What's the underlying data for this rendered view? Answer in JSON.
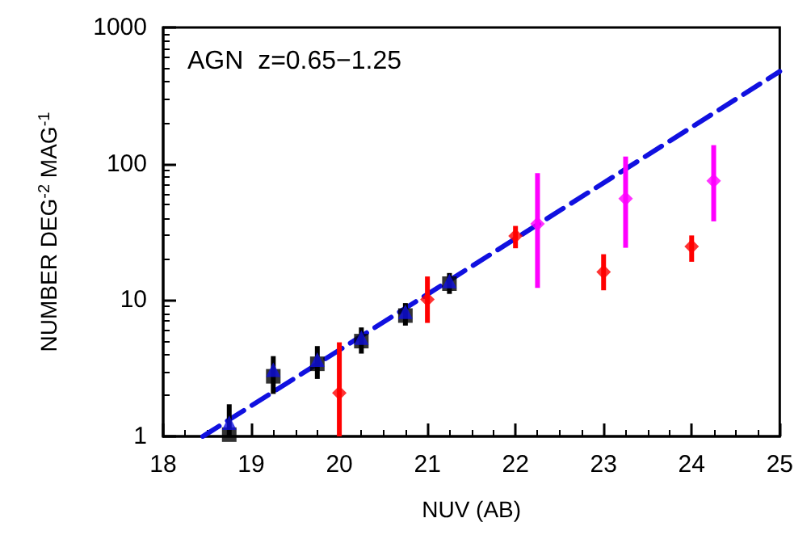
{
  "chart_data": {
    "type": "scatter",
    "xlabel": "NUV (AB)",
    "ylabel": "NUMBER DEG$^{-2}$ MAG$^{-1}$",
    "annotations": [
      "AGN  z=0.65−1.25"
    ],
    "log": "y",
    "xlim": [
      18,
      25
    ],
    "xticks": [
      18,
      19,
      20,
      21,
      22,
      23,
      24,
      25
    ],
    "ylim": [
      1,
      1000
    ],
    "yticks": [
      1,
      10,
      100,
      1000
    ],
    "grid": false,
    "series": [
      {
        "type": "line",
        "color": "#1010e0",
        "line_style": "dashed",
        "marker": "none",
        "x": [
          18.45,
          25
        ],
        "values": [
          1,
          476
        ]
      },
      {
        "color": "#000000",
        "marker": "square",
        "x": [
          18.75,
          19.25,
          19.75,
          20.25,
          20.75,
          21.25
        ],
        "values": [
          1.03,
          2.76,
          3.41,
          5.0,
          7.7,
          13.2
        ],
        "errors": [
          [
            1,
            1.72
          ],
          [
            2.05,
            3.88
          ],
          [
            2.64,
            4.6
          ],
          [
            4.05,
            6.3
          ],
          [
            6.5,
            9.5
          ],
          [
            11.1,
            15.8
          ]
        ]
      },
      {
        "color": "#1010e0",
        "marker": "triangle",
        "x": [
          18.75,
          19.25,
          19.75,
          20.25,
          20.75,
          21.25
        ],
        "values": [
          1.26,
          3.08,
          3.66,
          5.3,
          8.2,
          13.8
        ]
      },
      {
        "color": "#ff0000",
        "marker": "diamond",
        "x": [
          20,
          21,
          22,
          23,
          24
        ],
        "values": [
          2.08,
          10.1,
          29.5,
          16.1,
          24.7
        ],
        "errors": [
          [
            1,
            4.9
          ],
          [
            6.8,
            14.9
          ],
          [
            24,
            35
          ],
          [
            11.8,
            21.7
          ],
          [
            19.1,
            29.8
          ]
        ]
      },
      {
        "color": "#ff00ff",
        "marker": "diamond",
        "x": [
          22.25,
          23.25,
          24.25
        ],
        "values": [
          36.2,
          55.5,
          74.9
        ],
        "errors": [
          [
            12.3,
            85.5
          ],
          [
            24.2,
            113
          ],
          [
            37.8,
            137
          ]
        ]
      }
    ]
  }
}
